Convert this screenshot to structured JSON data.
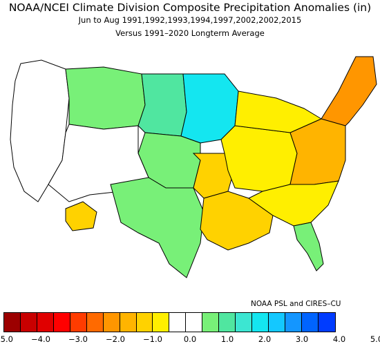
{
  "title": "NOAA/NCEI Climate Division Composite Precipitation Anomalies (in)",
  "subtitle": "Jun to Aug  1991,1992,1993,1994,1997,2002,2002,2015",
  "baseline": "Versus 1991–2020 Longterm Average",
  "credit": "NOAA PSL and CIRES–CU",
  "colorbar": {
    "colors": [
      "#9c0000",
      "#c80000",
      "#e00000",
      "#ff0000",
      "#ff3c00",
      "#ff6a00",
      "#ff9600",
      "#ffb400",
      "#ffd200",
      "#ffef00",
      "#ffffff",
      "#ffffff",
      "#78f078",
      "#50e6a0",
      "#3ce6d2",
      "#14e6f0",
      "#14c8ff",
      "#1496ff",
      "#0064ff",
      "#003cff"
    ],
    "ticks": [
      "−5.0",
      "−4.0",
      "−3.0",
      "−2.0",
      "−1.0",
      "0.0",
      "1.0",
      "2.0",
      "3.0",
      "4.0",
      "5.0"
    ]
  },
  "regions": [
    {
      "name": "pacific-northwest-coast",
      "color": "#ffffff"
    },
    {
      "name": "northern-rockies",
      "color": "#78f078"
    },
    {
      "name": "northern-plains",
      "color": "#50e6a0"
    },
    {
      "name": "upper-midwest",
      "color": "#14e6f0"
    },
    {
      "name": "central-plains",
      "color": "#78f078"
    },
    {
      "name": "southwest",
      "color": "#ffffff"
    },
    {
      "name": "arizona-south",
      "color": "#ffd200"
    },
    {
      "name": "southern-plains",
      "color": "#78f078"
    },
    {
      "name": "ozarks",
      "color": "#ffd200"
    },
    {
      "name": "gulf-coast",
      "color": "#ffd200"
    },
    {
      "name": "ohio-valley",
      "color": "#ffef00"
    },
    {
      "name": "mid-atlantic",
      "color": "#ffb400"
    },
    {
      "name": "northeast",
      "color": "#ff9600"
    },
    {
      "name": "southeast",
      "color": "#ffef00"
    },
    {
      "name": "florida",
      "color": "#78f078"
    },
    {
      "name": "great-lakes",
      "color": "#ffef00"
    }
  ]
}
